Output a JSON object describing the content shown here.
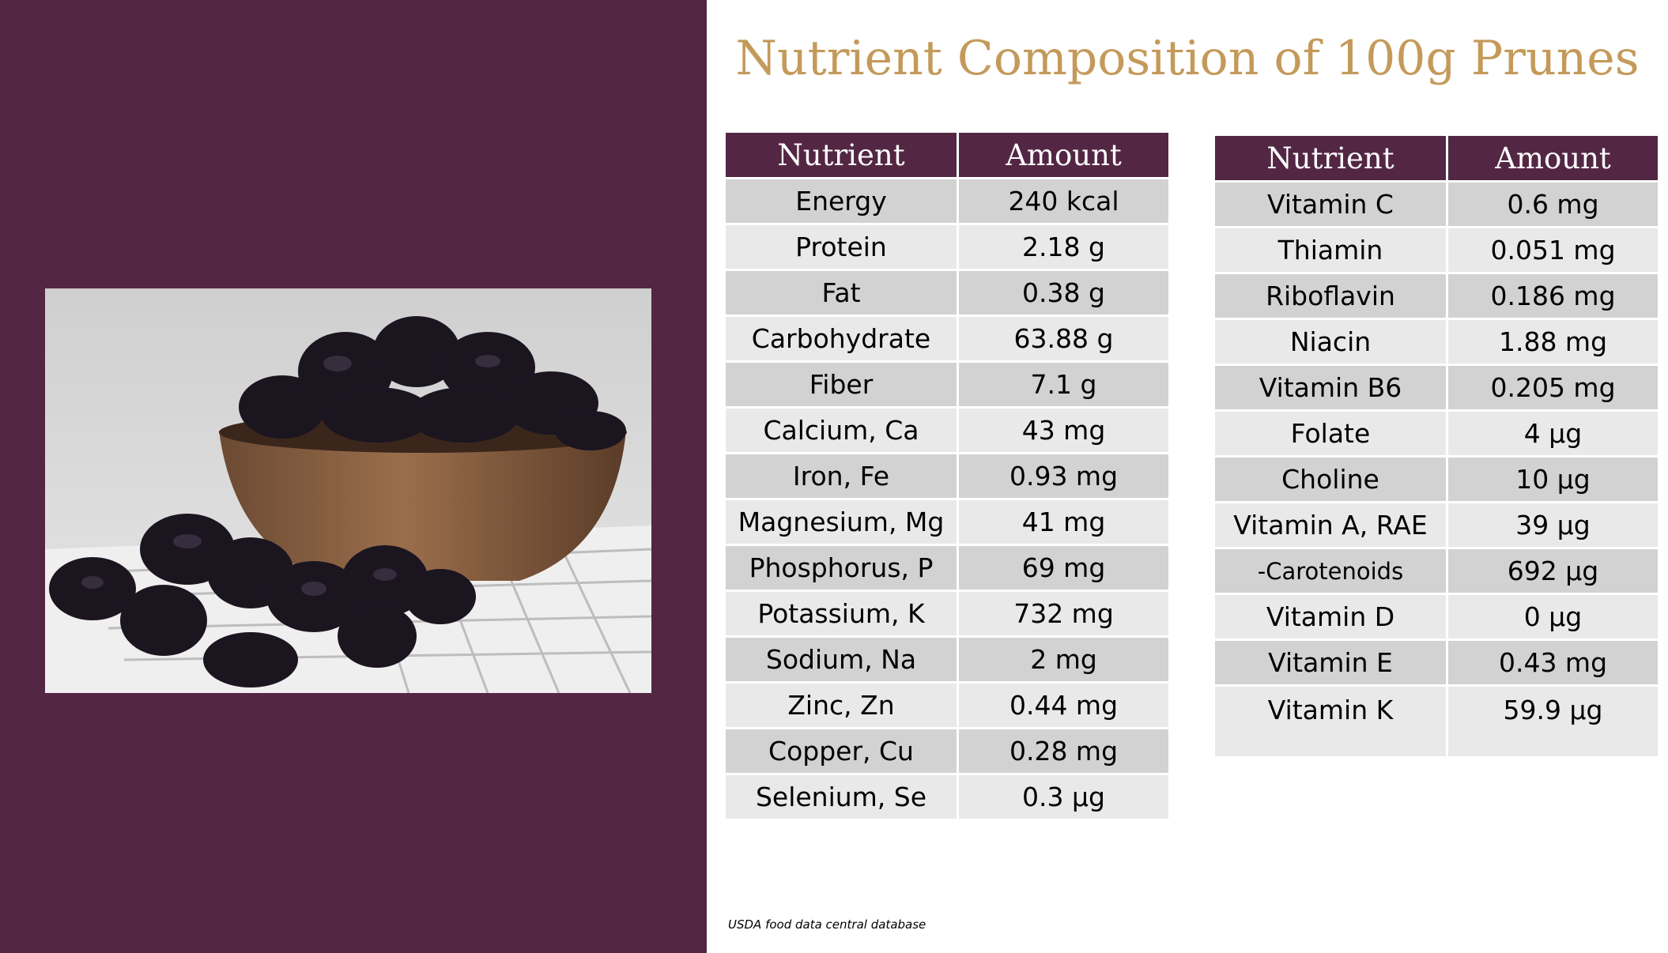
{
  "title": "Nutrient Composition of 100g Prunes",
  "photo": {
    "icon": "prunes-in-wooden-bowl-image"
  },
  "colors": {
    "panel": "#532744",
    "title": "#c49a5a",
    "header_bg": "#532744",
    "row_dark": "#d3d2d3",
    "row_light": "#e9e9e9"
  },
  "left_table": {
    "headers": [
      "Nutrient",
      "Amount"
    ],
    "rows": [
      [
        "Energy",
        "240 kcal"
      ],
      [
        "Protein",
        "2.18 g"
      ],
      [
        "Fat",
        "0.38 g"
      ],
      [
        "Carbohydrate",
        "63.88 g"
      ],
      [
        "Fiber",
        "7.1 g"
      ],
      [
        "Calcium, Ca",
        "43 mg"
      ],
      [
        "Iron, Fe",
        "0.93 mg"
      ],
      [
        "Magnesium, Mg",
        "41 mg"
      ],
      [
        "Phosphorus, P",
        "69 mg"
      ],
      [
        "Potassium, K",
        "732 mg"
      ],
      [
        "Sodium, Na",
        "2 mg"
      ],
      [
        "Zinc, Zn",
        "0.44 mg"
      ],
      [
        "Copper, Cu",
        "0.28 mg"
      ],
      [
        "Selenium, Se",
        "0.3 µg"
      ]
    ]
  },
  "right_table": {
    "headers": [
      "Nutrient",
      "Amount"
    ],
    "rows": [
      [
        "Vitamin C",
        "0.6 mg"
      ],
      [
        "Thiamin",
        "0.051 mg"
      ],
      [
        "Riboflavin",
        "0.186 mg"
      ],
      [
        "Niacin",
        "1.88 mg"
      ],
      [
        "Vitamin B6",
        "0.205 mg"
      ],
      [
        "Folate",
        "4 µg"
      ],
      [
        "Choline",
        "10 µg"
      ],
      [
        "Vitamin A, RAE",
        "39 µg"
      ],
      [
        "-Carotenoids",
        "692 µg"
      ],
      [
        "Vitamin D",
        "0 µg"
      ],
      [
        "Vitamin E",
        "0.43 mg"
      ],
      [
        "Vitamin K",
        "59.9 µg"
      ]
    ]
  },
  "source": "USDA food data central database"
}
